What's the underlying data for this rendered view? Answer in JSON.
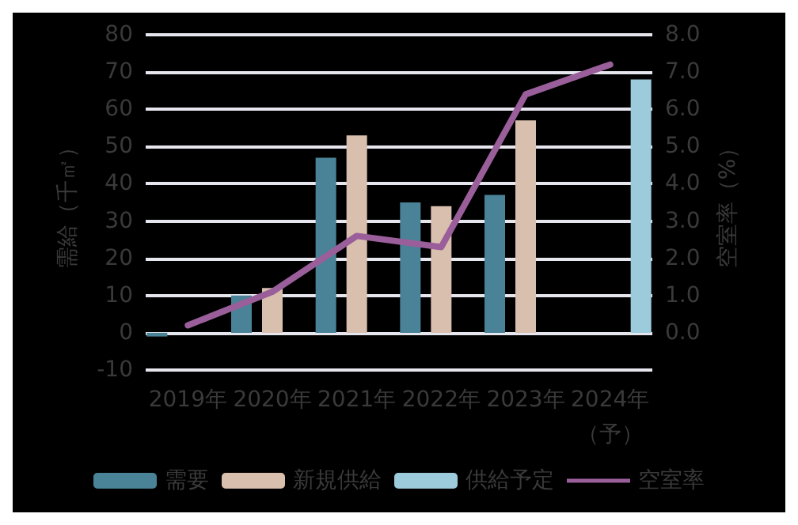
{
  "chart_data": {
    "type": "bar",
    "ylabel": "需給（千㎡）",
    "y2label": "空室率（%）",
    "categories": [
      "2019年",
      "2020年",
      "2021年",
      "2022年",
      "2023年",
      "2024年（予）"
    ],
    "series": [
      {
        "name": "需要",
        "color": "#4a8297",
        "values": [
          -1,
          10,
          47,
          35,
          37,
          null
        ]
      },
      {
        "name": "新規供給",
        "color": "#d9bfae",
        "values": [
          null,
          12,
          53,
          34,
          57,
          null
        ]
      },
      {
        "name": "供給予定",
        "color": "#9ccbdc",
        "values": [
          null,
          null,
          null,
          null,
          null,
          68
        ]
      },
      {
        "name": "空室率",
        "type": "line",
        "axis": "y2",
        "color": "#9a5f9a",
        "marker": "none",
        "values": [
          0.2,
          1.1,
          2.6,
          2.3,
          6.4,
          7.2
        ]
      }
    ],
    "ylim": [
      -10,
      80
    ],
    "yticks": [
      -10,
      0,
      10,
      20,
      30,
      40,
      50,
      60,
      70,
      80
    ],
    "y2lim": [
      -1,
      8
    ],
    "y2ticks": [
      {
        "value": -1,
        "label": null
      },
      {
        "value": 0,
        "label": "0.0"
      },
      {
        "value": 1,
        "label": "1.0"
      },
      {
        "value": 2,
        "label": "2.0"
      },
      {
        "value": 3,
        "label": "3.0"
      },
      {
        "value": 4,
        "label": "4.0"
      },
      {
        "value": 5,
        "label": "5.0"
      },
      {
        "value": 6,
        "label": "6.0"
      },
      {
        "value": 7,
        "label": "7.0"
      },
      {
        "value": 8,
        "label": "8.0"
      }
    ],
    "grid": "y",
    "legend": "bottom"
  }
}
